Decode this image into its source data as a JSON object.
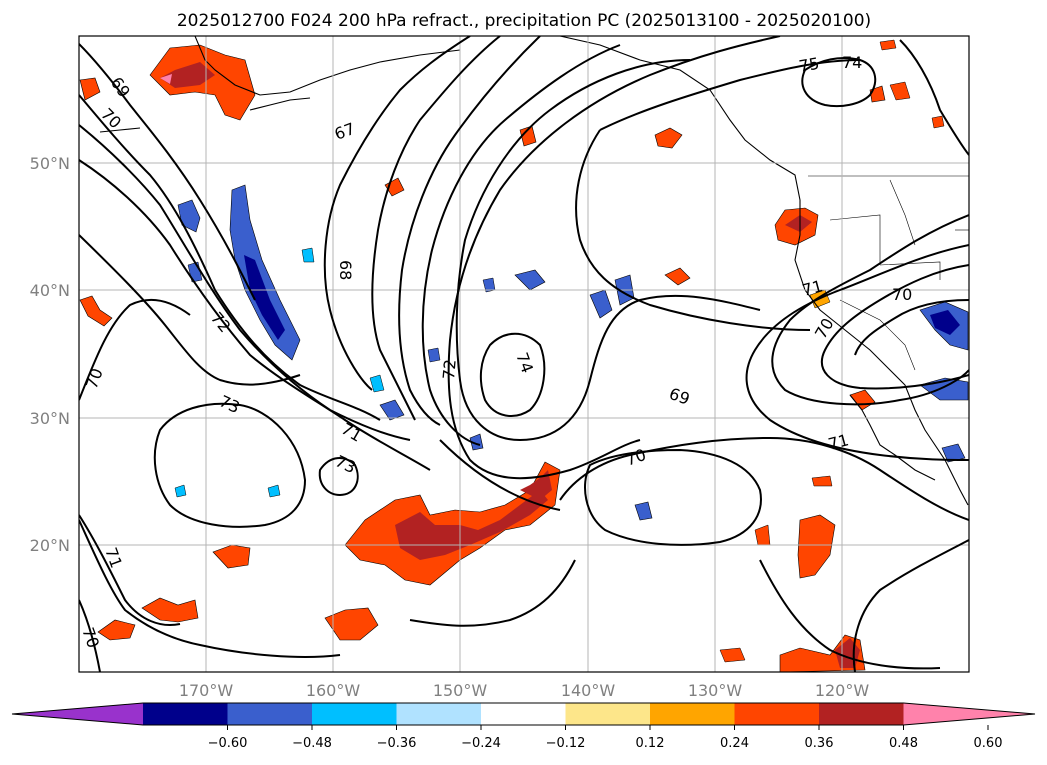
{
  "title": "2025012700 F024 200 hPa refract., precipitation PC (2025013100 - 2025020100)",
  "map": {
    "lon_range": [
      -180,
      -110
    ],
    "lat_range": [
      10,
      60
    ],
    "lat_ticks": [
      {
        "value": 50,
        "label": "50°N"
      },
      {
        "value": 40,
        "label": "40°N"
      },
      {
        "value": 30,
        "label": "30°N"
      },
      {
        "value": 20,
        "label": "20°N"
      }
    ],
    "lon_ticks": [
      {
        "value": -170,
        "label": "170°W"
      },
      {
        "value": -160,
        "label": "160°W"
      },
      {
        "value": -150,
        "label": "150°W"
      },
      {
        "value": -140,
        "label": "140°W"
      },
      {
        "value": -130,
        "label": "130°W"
      },
      {
        "value": -120,
        "label": "120°W"
      }
    ],
    "contour_labels": [
      "69",
      "70",
      "67",
      "75",
      "74",
      "68",
      "72",
      "70",
      "73",
      "74",
      "71",
      "73",
      "71",
      "70",
      "72",
      "70",
      "69",
      "71",
      "70",
      "71",
      "70"
    ]
  },
  "colorbar": {
    "colors": [
      "#9932cc",
      "#00008b",
      "#3a5fcd",
      "#00bfff",
      "#b0e2ff",
      "#ffffff",
      "#fde68a",
      "#ffa500",
      "#ff4500",
      "#b22222",
      "#ff82ab"
    ],
    "ticks": [
      "−0.60",
      "−0.48",
      "−0.36",
      "−0.24",
      "−0.12",
      "0.12",
      "0.24",
      "0.36",
      "0.48",
      "0.60"
    ]
  }
}
